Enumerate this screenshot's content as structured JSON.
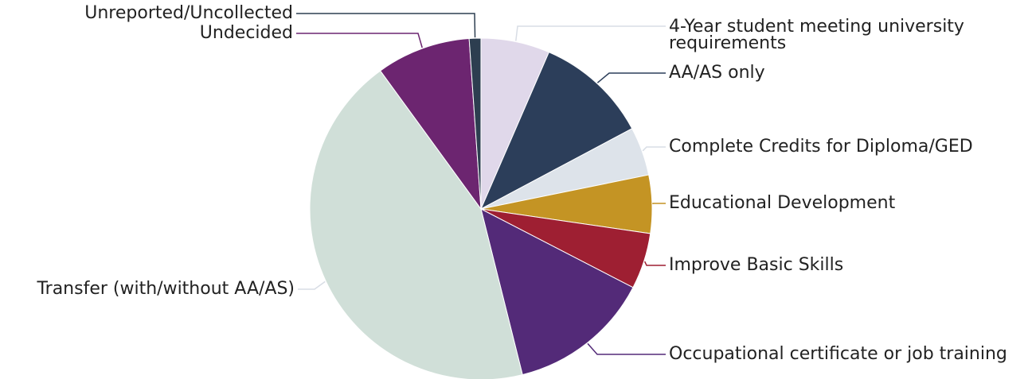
{
  "chart_data": {
    "type": "pie",
    "categories": [
      "4-Year student meeting university requirements",
      "AA/AS only",
      "Complete Credits for Diploma/GED",
      "Educational Development",
      "Improve Basic Skills",
      "Occupational certificate or job training",
      "Transfer (with/without AA/AS)",
      "Undecided",
      "Unreported/Uncollected"
    ],
    "values": [
      6.5,
      10.7,
      4.6,
      5.5,
      5.3,
      13.5,
      43.9,
      8.9,
      1.1
    ],
    "colors": [
      "#e0d8ea",
      "#2c3e5a",
      "#dde3ea",
      "#c49424",
      "#9e1f32",
      "#532a78",
      "#d0dfd8",
      "#6c2570",
      "#2d3e50"
    ]
  }
}
